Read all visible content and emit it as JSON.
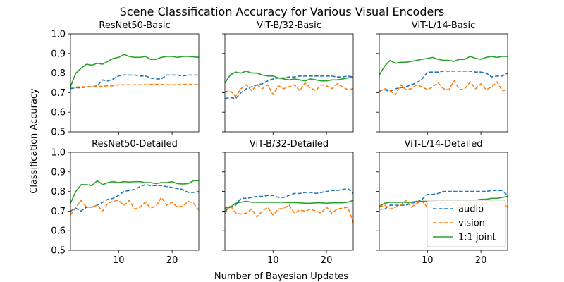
{
  "figure": {
    "title": "Scene Classification Accuracy for Various Visual Encoders",
    "xlabel": "Number of Bayesian Updates",
    "ylabel": "Classification Accuracy"
  },
  "legend": {
    "position": "lower-right",
    "entries": [
      {
        "name": "audio",
        "color": "#1f77b4",
        "style": "dashed"
      },
      {
        "name": "vision",
        "color": "#ff7f0e",
        "style": "dashed"
      },
      {
        "name": "1:1 joint",
        "color": "#2ca02c",
        "style": "solid"
      }
    ]
  },
  "axes": {
    "xlim": [
      1,
      25
    ],
    "ylim": [
      0.5,
      1.0
    ],
    "xticks": [
      10,
      20
    ],
    "yticks": [
      0.5,
      0.6,
      0.7,
      0.8,
      0.9,
      1.0
    ],
    "ytick_labels": [
      "0.5",
      "0.6",
      "0.7",
      "0.8",
      "0.9",
      "1.0"
    ]
  },
  "chart_data": [
    {
      "type": "line",
      "title": "ResNet50-Basic",
      "x": [
        1,
        2,
        3,
        4,
        5,
        6,
        7,
        8,
        9,
        10,
        11,
        12,
        13,
        14,
        15,
        16,
        17,
        18,
        19,
        20,
        21,
        22,
        23,
        24,
        25
      ],
      "series": [
        {
          "name": "audio",
          "values": [
            0.72,
            0.725,
            0.725,
            0.73,
            0.73,
            0.735,
            0.765,
            0.76,
            0.77,
            0.785,
            0.79,
            0.79,
            0.79,
            0.785,
            0.785,
            0.775,
            0.77,
            0.77,
            0.79,
            0.79,
            0.79,
            0.785,
            0.79,
            0.79,
            0.79
          ]
        },
        {
          "name": "vision",
          "values": [
            0.725,
            0.728,
            0.73,
            0.73,
            0.73,
            0.732,
            0.733,
            0.735,
            0.735,
            0.74,
            0.74,
            0.74,
            0.74,
            0.74,
            0.74,
            0.742,
            0.742,
            0.742,
            0.74,
            0.74,
            0.74,
            0.742,
            0.742,
            0.742,
            0.74
          ]
        },
        {
          "name": "1:1 joint",
          "values": [
            0.73,
            0.8,
            0.825,
            0.845,
            0.84,
            0.85,
            0.845,
            0.86,
            0.875,
            0.88,
            0.895,
            0.885,
            0.88,
            0.88,
            0.885,
            0.87,
            0.87,
            0.88,
            0.885,
            0.885,
            0.88,
            0.885,
            0.885,
            0.883,
            0.88
          ]
        }
      ]
    },
    {
      "type": "line",
      "title": "ViT-B/32-Basic",
      "x": [
        1,
        2,
        3,
        4,
        5,
        6,
        7,
        8,
        9,
        10,
        11,
        12,
        13,
        14,
        15,
        16,
        17,
        18,
        19,
        20,
        21,
        22,
        23,
        24,
        25
      ],
      "series": [
        {
          "name": "audio",
          "values": [
            0.67,
            0.675,
            0.67,
            0.7,
            0.72,
            0.73,
            0.74,
            0.745,
            0.76,
            0.77,
            0.775,
            0.775,
            0.78,
            0.78,
            0.785,
            0.785,
            0.785,
            0.785,
            0.785,
            0.785,
            0.785,
            0.78,
            0.78,
            0.785,
            0.78
          ]
        },
        {
          "name": "vision",
          "values": [
            0.705,
            0.71,
            0.68,
            0.72,
            0.74,
            0.71,
            0.74,
            0.72,
            0.74,
            0.69,
            0.735,
            0.72,
            0.73,
            0.74,
            0.71,
            0.75,
            0.725,
            0.71,
            0.74,
            0.735,
            0.72,
            0.745,
            0.73,
            0.715,
            0.72
          ]
        },
        {
          "name": "1:1 joint",
          "values": [
            0.75,
            0.79,
            0.805,
            0.8,
            0.81,
            0.8,
            0.8,
            0.79,
            0.785,
            0.785,
            0.775,
            0.77,
            0.765,
            0.77,
            0.765,
            0.76,
            0.77,
            0.765,
            0.76,
            0.76,
            0.765,
            0.765,
            0.77,
            0.775,
            0.78
          ]
        }
      ]
    },
    {
      "type": "line",
      "title": "ViT-L/14-Basic",
      "x": [
        1,
        2,
        3,
        4,
        5,
        6,
        7,
        8,
        9,
        10,
        11,
        12,
        13,
        14,
        15,
        16,
        17,
        18,
        19,
        20,
        21,
        22,
        23,
        24,
        25
      ],
      "series": [
        {
          "name": "audio",
          "values": [
            0.71,
            0.715,
            0.705,
            0.72,
            0.725,
            0.73,
            0.74,
            0.75,
            0.77,
            0.805,
            0.805,
            0.805,
            0.81,
            0.81,
            0.81,
            0.81,
            0.81,
            0.81,
            0.805,
            0.805,
            0.8,
            0.78,
            0.785,
            0.785,
            0.8
          ]
        },
        {
          "name": "vision",
          "values": [
            0.705,
            0.72,
            0.71,
            0.69,
            0.74,
            0.715,
            0.72,
            0.74,
            0.73,
            0.715,
            0.73,
            0.75,
            0.72,
            0.715,
            0.76,
            0.715,
            0.72,
            0.755,
            0.72,
            0.745,
            0.715,
            0.73,
            0.755,
            0.71,
            0.715
          ]
        },
        {
          "name": "1:1 joint",
          "values": [
            0.79,
            0.835,
            0.865,
            0.85,
            0.855,
            0.855,
            0.86,
            0.865,
            0.87,
            0.875,
            0.88,
            0.87,
            0.865,
            0.865,
            0.86,
            0.87,
            0.87,
            0.885,
            0.875,
            0.87,
            0.88,
            0.885,
            0.88,
            0.885,
            0.885
          ]
        }
      ]
    },
    {
      "type": "line",
      "title": "ResNet50-Detailed",
      "x": [
        1,
        2,
        3,
        4,
        5,
        6,
        7,
        8,
        9,
        10,
        11,
        12,
        13,
        14,
        15,
        16,
        17,
        18,
        19,
        20,
        21,
        22,
        23,
        24,
        25
      ],
      "series": [
        {
          "name": "audio",
          "values": [
            0.7,
            0.715,
            0.7,
            0.72,
            0.72,
            0.73,
            0.745,
            0.76,
            0.765,
            0.78,
            0.8,
            0.805,
            0.81,
            0.825,
            0.835,
            0.83,
            0.83,
            0.83,
            0.825,
            0.82,
            0.815,
            0.81,
            0.795,
            0.795,
            0.8
          ]
        },
        {
          "name": "vision",
          "values": [
            0.68,
            0.72,
            0.755,
            0.72,
            0.72,
            0.73,
            0.7,
            0.74,
            0.75,
            0.755,
            0.73,
            0.755,
            0.71,
            0.72,
            0.745,
            0.715,
            0.725,
            0.77,
            0.73,
            0.745,
            0.72,
            0.725,
            0.75,
            0.74,
            0.705
          ]
        },
        {
          "name": "1:1 joint",
          "values": [
            0.74,
            0.8,
            0.835,
            0.835,
            0.83,
            0.855,
            0.835,
            0.845,
            0.85,
            0.845,
            0.85,
            0.848,
            0.85,
            0.85,
            0.845,
            0.845,
            0.84,
            0.845,
            0.845,
            0.85,
            0.84,
            0.838,
            0.84,
            0.855,
            0.855
          ]
        }
      ]
    },
    {
      "type": "line",
      "title": "ViT-B/32-Detailed",
      "x": [
        1,
        2,
        3,
        4,
        5,
        6,
        7,
        8,
        9,
        10,
        11,
        12,
        13,
        14,
        15,
        16,
        17,
        18,
        19,
        20,
        21,
        22,
        23,
        24,
        25
      ],
      "series": [
        {
          "name": "audio",
          "values": [
            0.7,
            0.72,
            0.73,
            0.765,
            0.765,
            0.77,
            0.775,
            0.775,
            0.78,
            0.78,
            0.77,
            0.77,
            0.78,
            0.79,
            0.79,
            0.795,
            0.795,
            0.79,
            0.795,
            0.8,
            0.805,
            0.805,
            0.81,
            0.815,
            0.79
          ]
        },
        {
          "name": "vision",
          "values": [
            0.685,
            0.73,
            0.69,
            0.685,
            0.69,
            0.71,
            0.67,
            0.7,
            0.72,
            0.68,
            0.71,
            0.715,
            0.73,
            0.69,
            0.705,
            0.7,
            0.71,
            0.7,
            0.69,
            0.72,
            0.69,
            0.71,
            0.715,
            0.72,
            0.64
          ]
        },
        {
          "name": "1:1 joint",
          "values": [
            0.715,
            0.72,
            0.74,
            0.745,
            0.75,
            0.745,
            0.745,
            0.745,
            0.745,
            0.745,
            0.745,
            0.745,
            0.743,
            0.743,
            0.742,
            0.74,
            0.74,
            0.742,
            0.742,
            0.74,
            0.742,
            0.742,
            0.742,
            0.745,
            0.755
          ]
        }
      ]
    },
    {
      "type": "line",
      "title": "ViT-L/14-Detailed",
      "x": [
        1,
        2,
        3,
        4,
        5,
        6,
        7,
        8,
        9,
        10,
        11,
        12,
        13,
        14,
        15,
        16,
        17,
        18,
        19,
        20,
        21,
        22,
        23,
        24,
        25
      ],
      "series": [
        {
          "name": "audio",
          "values": [
            0.71,
            0.71,
            0.73,
            0.73,
            0.73,
            0.73,
            0.74,
            0.745,
            0.76,
            0.785,
            0.785,
            0.79,
            0.8,
            0.8,
            0.8,
            0.8,
            0.8,
            0.8,
            0.8,
            0.8,
            0.8,
            0.805,
            0.805,
            0.805,
            0.78
          ]
        },
        {
          "name": "vision",
          "values": [
            0.72,
            0.73,
            0.71,
            0.72,
            0.73,
            0.755,
            0.72,
            0.74,
            0.75,
            0.72,
            0.72,
            0.735,
            0.75,
            0.72,
            0.74,
            0.73,
            0.735,
            0.74,
            0.745,
            0.73,
            0.74,
            0.75,
            0.735,
            0.74,
            0.72
          ]
        },
        {
          "name": "1:1 joint",
          "values": [
            0.725,
            0.74,
            0.745,
            0.745,
            0.745,
            0.745,
            0.745,
            0.75,
            0.75,
            0.75,
            0.75,
            0.755,
            0.755,
            0.755,
            0.755,
            0.755,
            0.755,
            0.755,
            0.755,
            0.76,
            0.76,
            0.765,
            0.765,
            0.77,
            0.775
          ]
        }
      ]
    }
  ]
}
